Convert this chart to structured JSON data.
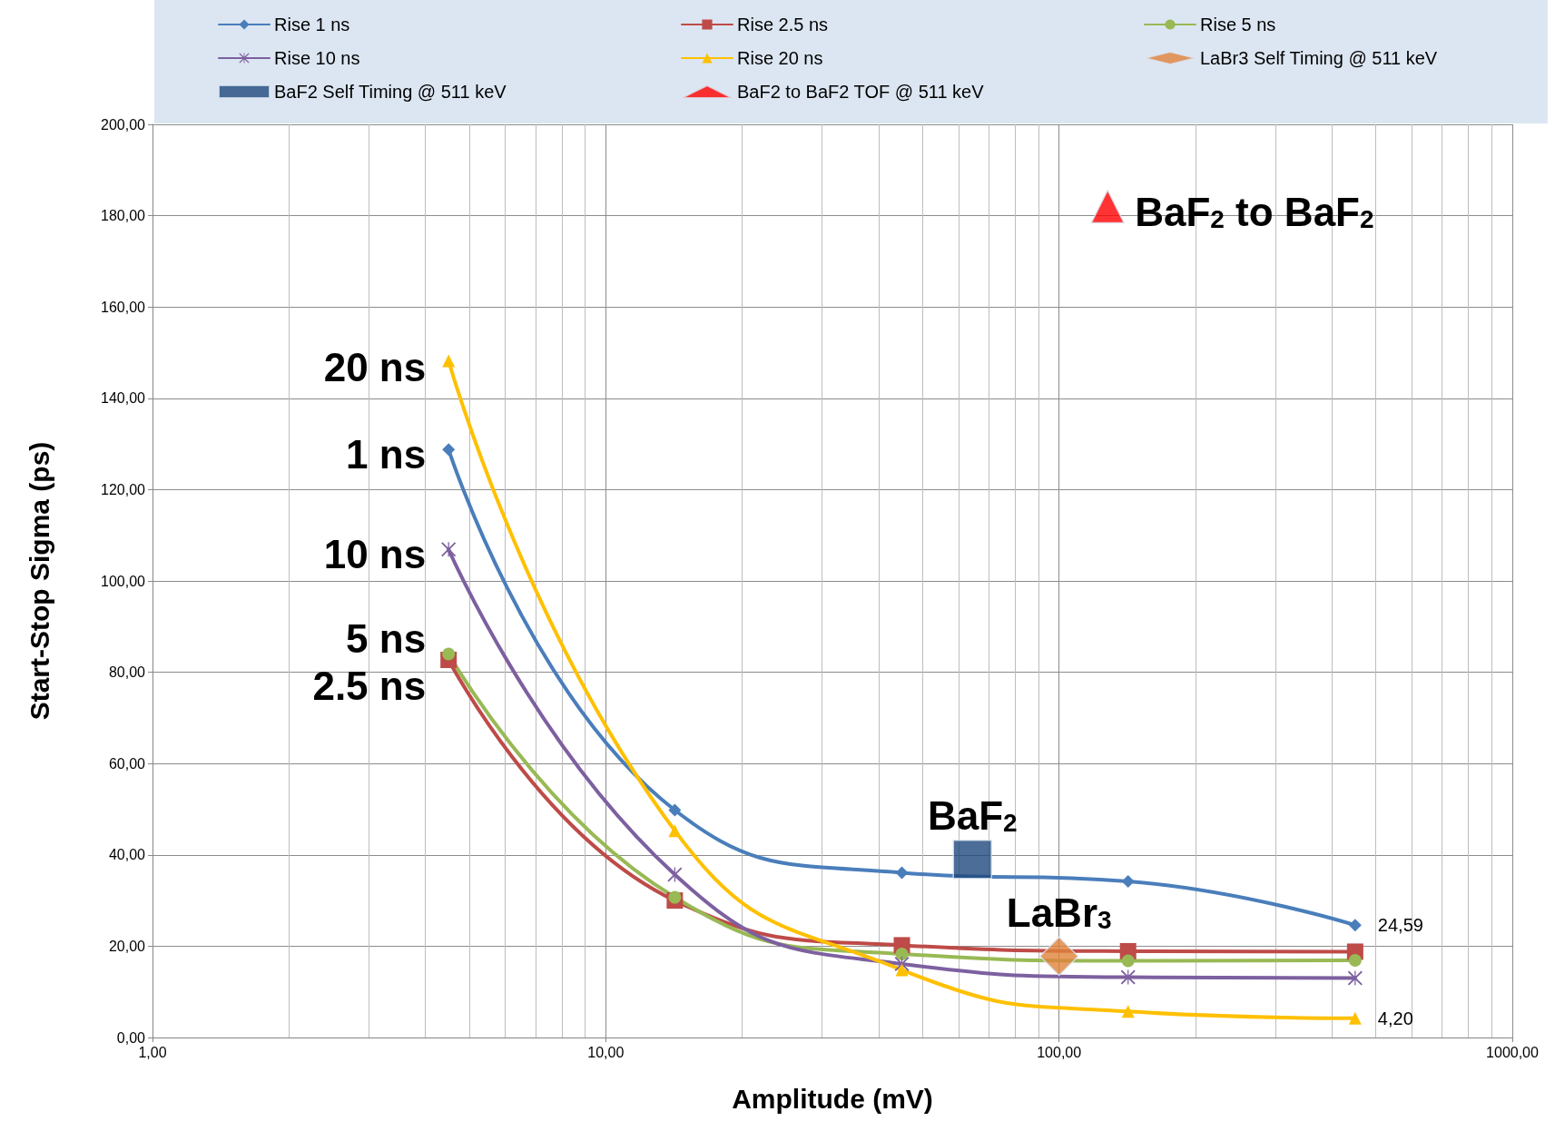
{
  "chart_data": {
    "type": "line",
    "xlabel": "Amplitude (mV)",
    "ylabel": "Start-Stop Sigma (ps)",
    "log": "x",
    "grid": true,
    "legend": "top",
    "line_style": "solid",
    "xlim": [
      1,
      1000
    ],
    "xticks": [
      {
        "value": 1,
        "label": "1,00"
      },
      {
        "value": 10,
        "label": "10,00"
      },
      {
        "value": 100,
        "label": "100,00"
      },
      {
        "value": 1000,
        "label": "1000,00"
      }
    ],
    "ylim": [
      0,
      200
    ],
    "yticks": [
      {
        "value": 0,
        "label": "0,00"
      },
      {
        "value": 20,
        "label": "20,00"
      },
      {
        "value": 40,
        "label": "40,00"
      },
      {
        "value": 60,
        "label": "60,00"
      },
      {
        "value": 80,
        "label": "80,00"
      },
      {
        "value": 100,
        "label": "100,00"
      },
      {
        "value": 120,
        "label": "120,00"
      },
      {
        "value": 140,
        "label": "140,00"
      },
      {
        "value": 160,
        "label": "160,00"
      },
      {
        "value": 180,
        "label": "180,00"
      },
      {
        "value": 200,
        "label": "200,00"
      }
    ],
    "x": [
      4.5,
      14.2,
      45,
      142,
      450
    ],
    "series": [
      {
        "name": "Rise 1 ns",
        "color": "#4a7ebb",
        "marker": "diamond",
        "values": [
          128.8,
          49.8,
          36.1,
          34.2,
          24.59
        ],
        "value_labels": [
          null,
          null,
          null,
          null,
          "24,59"
        ]
      },
      {
        "name": "Rise 2.5 ns",
        "color": "#be4b48",
        "marker": "square",
        "values": [
          82.7,
          30.0,
          20.2,
          18.9,
          18.8
        ]
      },
      {
        "name": "Rise 5 ns",
        "color": "#98b954",
        "marker": "circle",
        "values": [
          84.0,
          30.7,
          18.3,
          16.8,
          16.9
        ]
      },
      {
        "name": "Rise 10 ns",
        "color": "#7d60a0",
        "marker": "cross",
        "values": [
          106.9,
          35.7,
          16.1,
          13.2,
          13.0
        ]
      },
      {
        "name": "Rise 20 ns",
        "color": "#ffc000",
        "marker": "triangle",
        "values": [
          148.2,
          45.3,
          14.8,
          5.7,
          4.2
        ],
        "value_labels": [
          null,
          null,
          null,
          null,
          "4,20"
        ]
      },
      {
        "name": "LaBr3 Self Timing @ 511 keV",
        "color": "#e0823a",
        "marker": "diamond",
        "type": "scatter",
        "x": [
          100
        ],
        "values": [
          17.8
        ]
      },
      {
        "name": "BaF2 Self Timing @ 511 keV",
        "color": "#1f497d",
        "marker": "square",
        "type": "scatter",
        "x": [
          64.4
        ],
        "values": [
          39.0
        ]
      },
      {
        "name": "BaF2 to BaF2 TOF @ 511 keV",
        "color": "#ff0000",
        "marker": "triangle",
        "type": "scatter",
        "x": [
          128
        ],
        "values": [
          182
        ]
      }
    ],
    "annotations": [
      {
        "text": "20 ns",
        "x": 4.5,
        "y": 148
      },
      {
        "text": "1 ns",
        "x": 4.5,
        "y": 129
      },
      {
        "text": "10 ns",
        "x": 4.5,
        "y": 107
      },
      {
        "text": "5 ns",
        "x": 4.5,
        "y": 84.0
      },
      {
        "text": "2.5 ns",
        "x": 4.5,
        "y": 82.7
      },
      {
        "text": "BaF$_{2}$",
        "x": 64.4,
        "y": 39
      },
      {
        "text": "LaBr$_{3}$",
        "x": 100,
        "y": 17.8
      },
      {
        "text": "BaF$_{2}$ to BaF$_{2}$",
        "x": 128,
        "y": 182
      }
    ]
  }
}
